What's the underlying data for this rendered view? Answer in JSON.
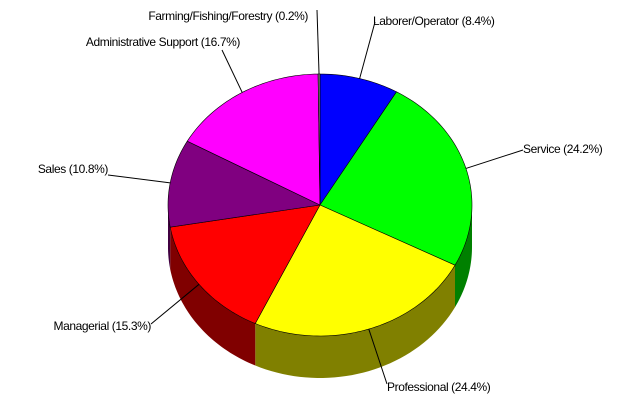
{
  "chart_data": {
    "type": "pie3d",
    "categories": [
      "Laborer/Operator (8.4%)",
      "Service (24.2%)",
      "Professional (24.4%)",
      "Managerial (15.3%)",
      "Sales (10.8%)",
      "Administrative Support (16.7%)",
      "Farming/Fishing/Forestry (0.2%)"
    ],
    "values": [
      8.4,
      24.2,
      24.4,
      15.3,
      10.8,
      16.7,
      0.2
    ],
    "colors": [
      "#0000ff",
      "#00ff00",
      "#ffff00",
      "#ff0000",
      "#800080",
      "#ff00ff",
      "#808080"
    ]
  }
}
